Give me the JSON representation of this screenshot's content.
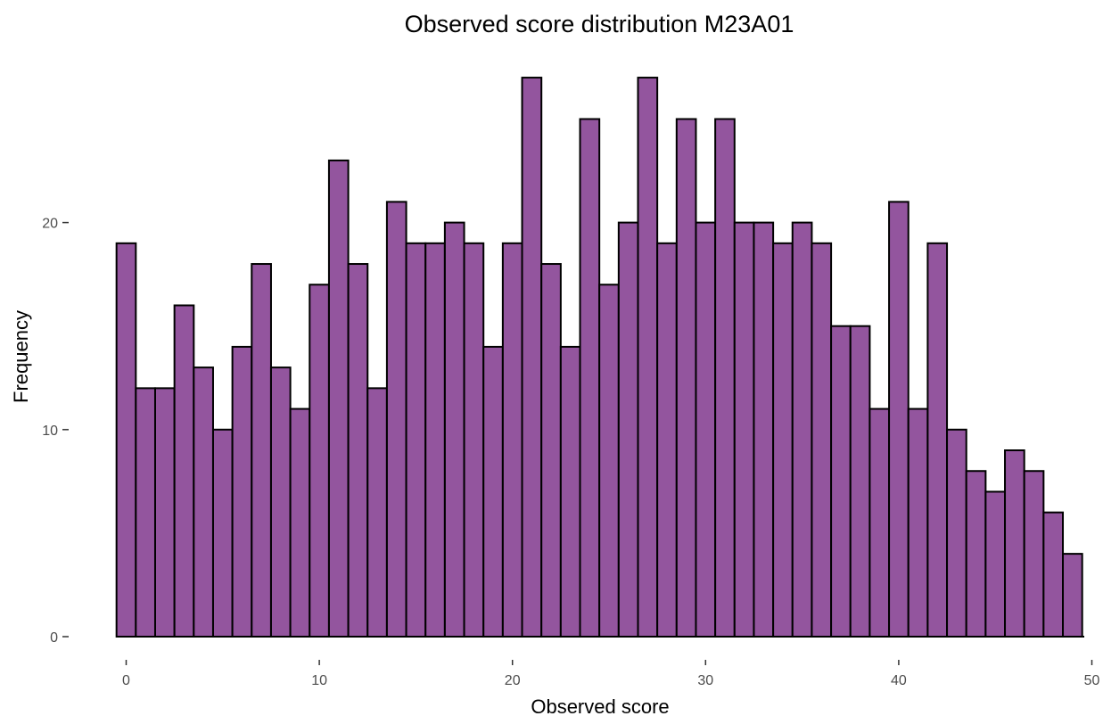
{
  "chart_data": {
    "type": "bar",
    "title": "Observed score distribution M23A01",
    "xlabel": "Observed score",
    "ylabel": "Frequency",
    "x": [
      0,
      1,
      2,
      3,
      4,
      5,
      6,
      7,
      8,
      9,
      10,
      11,
      12,
      13,
      14,
      15,
      16,
      17,
      18,
      19,
      20,
      21,
      22,
      23,
      24,
      25,
      26,
      27,
      28,
      29,
      30,
      31,
      32,
      33,
      34,
      35,
      36,
      37,
      38,
      39,
      40,
      41,
      42,
      43,
      44,
      45,
      46,
      47,
      48,
      49
    ],
    "values": [
      19,
      12,
      12,
      16,
      13,
      10,
      14,
      18,
      13,
      11,
      17,
      23,
      18,
      12,
      21,
      19,
      19,
      20,
      19,
      14,
      19,
      27,
      18,
      14,
      25,
      17,
      20,
      27,
      19,
      25,
      20,
      25,
      20,
      20,
      19,
      20,
      19,
      15,
      15,
      11,
      21,
      11,
      19,
      10,
      8,
      7,
      9,
      8,
      6,
      4
    ],
    "xlim": [
      -1,
      50
    ],
    "ylim": [
      0,
      27
    ],
    "xticks": [
      0,
      10,
      20,
      30,
      40,
      50
    ],
    "yticks": [
      0,
      10,
      20
    ],
    "grid": false,
    "bar_fill": "#93559e",
    "bar_stroke": "#000000"
  }
}
